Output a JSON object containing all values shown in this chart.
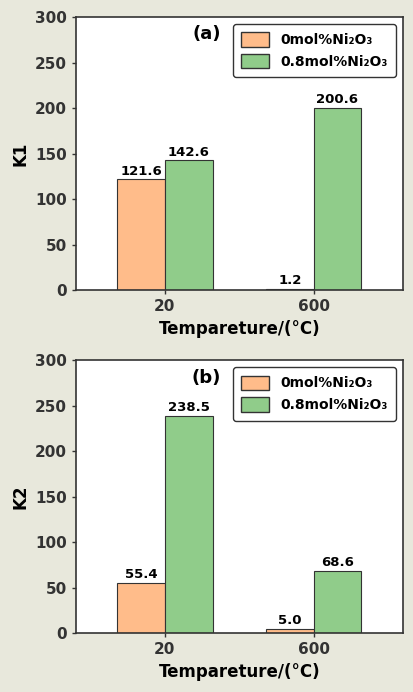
{
  "subplot_a": {
    "label": "(a)",
    "ylabel": "K1",
    "xlabel": "Tempareture/(°C)",
    "categories": [
      "20",
      "600"
    ],
    "values_orange": [
      121.6,
      1.2
    ],
    "values_green": [
      142.6,
      200.6
    ],
    "ylim": [
      0,
      300
    ],
    "yticks": [
      0,
      50,
      100,
      150,
      200,
      250,
      300
    ]
  },
  "subplot_b": {
    "label": "(b)",
    "ylabel": "K2",
    "xlabel": "Tempareture/(°C)",
    "categories": [
      "20",
      "600"
    ],
    "values_orange": [
      55.4,
      5.0
    ],
    "values_green": [
      238.5,
      68.6
    ],
    "ylim": [
      0,
      300
    ],
    "yticks": [
      0,
      50,
      100,
      150,
      200,
      250,
      300
    ]
  },
  "color_orange": "#FFBC8A",
  "color_green": "#90CC8A",
  "legend_labels": [
    "0mol%Ni₂O₃",
    "0.8mol%Ni₂O₃"
  ],
  "bar_width": 0.32,
  "figure_background": "#E8E8DC",
  "axes_background": "#FFFFFF",
  "edge_color": "#333333",
  "label_fontsize": 12,
  "tick_fontsize": 11,
  "annotation_fontsize": 9.5,
  "legend_fontsize": 10,
  "panel_fontsize": 13
}
